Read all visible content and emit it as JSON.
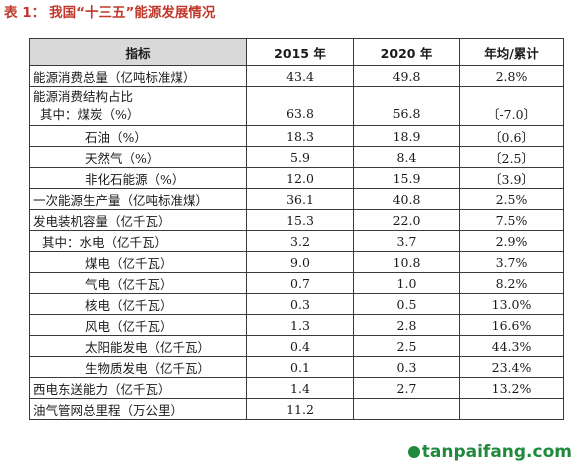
{
  "caption": {
    "label": "表 1：",
    "title": "我国“十三五”能源发展情况"
  },
  "table": {
    "headers": [
      "指标",
      "2015 年",
      "2020 年",
      "年均/累计"
    ],
    "rows": [
      {
        "indicator": "能源消费总量（亿吨标准煤）",
        "y2015": "43.4",
        "y2020": "49.8",
        "change": "2.8%"
      },
      {
        "indicator": "能源消费结构占比",
        "indicator_line2": "其中：煤炭（%）",
        "y2015": "63.8",
        "y2020": "56.8",
        "change": "〔-7.0〕"
      },
      {
        "indicator": "石油（%）",
        "y2015": "18.3",
        "y2020": "18.9",
        "change": "〔0.6〕"
      },
      {
        "indicator": "天然气（%）",
        "y2015": "5.9",
        "y2020": "8.4",
        "change": "〔2.5〕"
      },
      {
        "indicator": "非化石能源（%）",
        "y2015": "12.0",
        "y2020": "15.9",
        "change": "〔3.9〕"
      },
      {
        "indicator": "一次能源生产量（亿吨标准煤）",
        "y2015": "36.1",
        "y2020": "40.8",
        "change": "2.5%"
      },
      {
        "indicator": "发电装机容量（亿千瓦）",
        "y2015": "15.3",
        "y2020": "22.0",
        "change": "7.5%"
      },
      {
        "indicator": "其中：水电（亿千瓦）",
        "y2015": "3.2",
        "y2020": "3.7",
        "change": "2.9%"
      },
      {
        "indicator": "煤电（亿千瓦）",
        "y2015": "9.0",
        "y2020": "10.8",
        "change": "3.7%"
      },
      {
        "indicator": "气电（亿千瓦）",
        "y2015": "0.7",
        "y2020": "1.0",
        "change": "8.2%"
      },
      {
        "indicator": "核电（亿千瓦）",
        "y2015": "0.3",
        "y2020": "0.5",
        "change": "13.0%"
      },
      {
        "indicator": "风电（亿千瓦）",
        "y2015": "1.3",
        "y2020": "2.8",
        "change": "16.6%"
      },
      {
        "indicator": "太阳能发电（亿千瓦）",
        "y2015": "0.4",
        "y2020": "2.5",
        "change": "44.3%"
      },
      {
        "indicator": "生物质发电（亿千瓦）",
        "y2015": "0.1",
        "y2020": "0.3",
        "change": "23.4%"
      },
      {
        "indicator": "西电东送能力（亿千瓦）",
        "y2015": "1.4",
        "y2020": "2.7",
        "change": "13.2%"
      },
      {
        "indicator": "油气管网总里程（万公里）",
        "y2015": "11.2",
        "y2020": "",
        "change": ""
      }
    ]
  },
  "watermark": "tanpaifang.com",
  "colors": {
    "caption": "#c0392b",
    "header_bg": "#d9d9d9",
    "watermark": "#1f8a3b"
  }
}
